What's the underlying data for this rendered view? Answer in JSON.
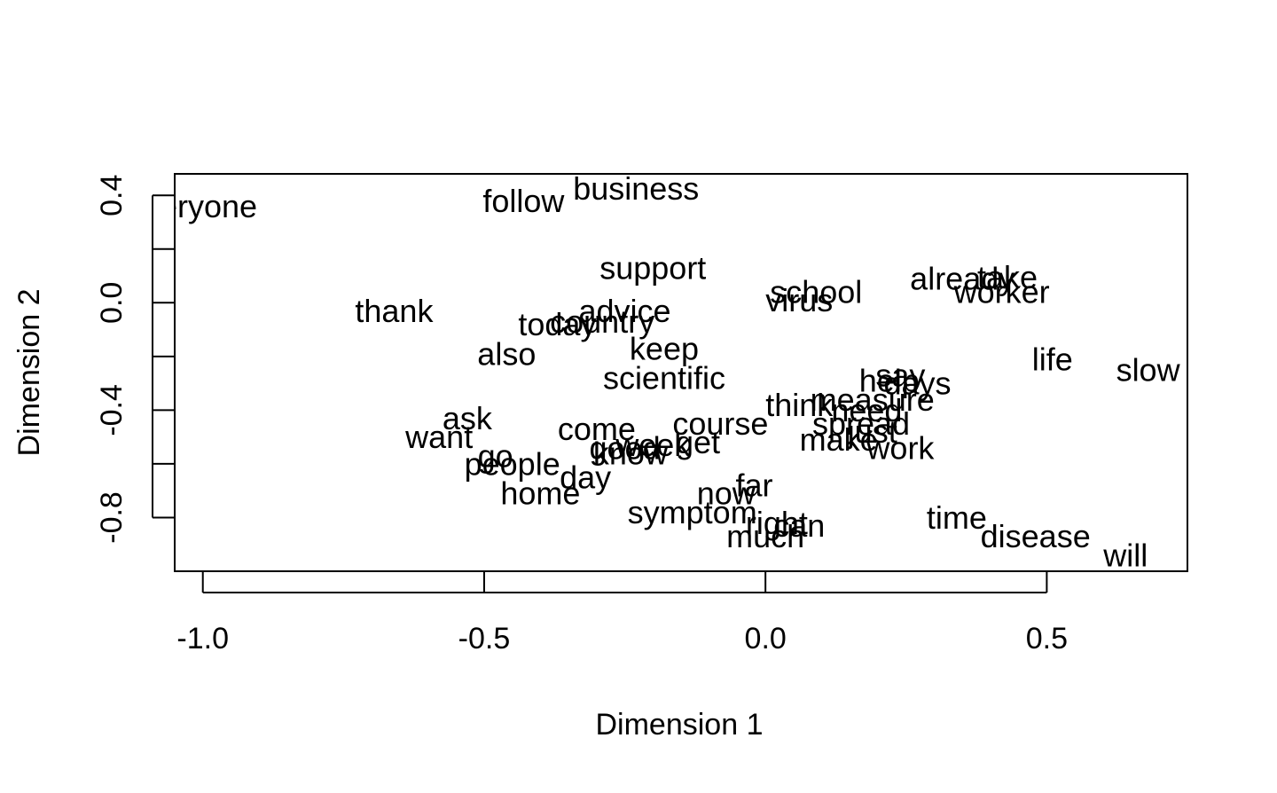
{
  "chart_data": {
    "type": "scatter",
    "xlabel": "Dimension 1",
    "ylabel": "Dimension 2",
    "xlim": [
      -1.05,
      0.75
    ],
    "ylim": [
      -1.0,
      0.48
    ],
    "xticks": [
      {
        "value": -1.0,
        "label": "-1.0"
      },
      {
        "value": -0.5,
        "label": "-0.5"
      },
      {
        "value": 0.0,
        "label": "0.0"
      },
      {
        "value": 0.5,
        "label": "0.5"
      }
    ],
    "yticks": [
      {
        "value": -0.8,
        "label": "-0.8",
        "labeled": true
      },
      {
        "value": -0.6,
        "label": "",
        "labeled": false
      },
      {
        "value": -0.4,
        "label": "-0.4",
        "labeled": true
      },
      {
        "value": -0.2,
        "label": "",
        "labeled": false
      },
      {
        "value": 0.0,
        "label": "0.0",
        "labeled": true
      },
      {
        "value": 0.2,
        "label": "",
        "labeled": false
      },
      {
        "value": 0.4,
        "label": "0.4",
        "labeled": true
      }
    ],
    "grid": false,
    "points": [
      {
        "label": "everyone",
        "x": -1.02,
        "y": 0.36
      },
      {
        "label": "follow",
        "x": -0.43,
        "y": 0.38
      },
      {
        "label": "business",
        "x": -0.23,
        "y": 0.425
      },
      {
        "label": "support",
        "x": -0.2,
        "y": 0.13
      },
      {
        "label": "school",
        "x": 0.09,
        "y": 0.04
      },
      {
        "label": "virus",
        "x": 0.06,
        "y": 0.01
      },
      {
        "label": "already",
        "x": 0.35,
        "y": 0.09
      },
      {
        "label": "take",
        "x": 0.43,
        "y": 0.095
      },
      {
        "label": "worker",
        "x": 0.42,
        "y": 0.04
      },
      {
        "label": "thank",
        "x": -0.66,
        "y": -0.03
      },
      {
        "label": "advice",
        "x": -0.25,
        "y": -0.03
      },
      {
        "label": "country",
        "x": -0.29,
        "y": -0.07
      },
      {
        "label": "today",
        "x": -0.37,
        "y": -0.08
      },
      {
        "label": "slow",
        "x": 0.68,
        "y": -0.25
      },
      {
        "label": "also",
        "x": -0.46,
        "y": -0.19
      },
      {
        "label": "keep",
        "x": -0.18,
        "y": -0.17
      },
      {
        "label": "life",
        "x": 0.51,
        "y": -0.21
      },
      {
        "label": "scientific",
        "x": -0.18,
        "y": -0.28
      },
      {
        "label": "help",
        "x": 0.22,
        "y": -0.29
      },
      {
        "label": "say",
        "x": 0.24,
        "y": -0.27
      },
      {
        "label": "days",
        "x": 0.27,
        "y": -0.3
      },
      {
        "label": "measure",
        "x": 0.19,
        "y": -0.36
      },
      {
        "label": "think",
        "x": 0.06,
        "y": -0.38
      },
      {
        "label": "need",
        "x": 0.18,
        "y": -0.4
      },
      {
        "label": "ask",
        "x": -0.53,
        "y": -0.43
      },
      {
        "label": "come",
        "x": -0.3,
        "y": -0.47
      },
      {
        "label": "course",
        "x": -0.08,
        "y": -0.45
      },
      {
        "label": "spread",
        "x": 0.17,
        "y": -0.45
      },
      {
        "label": "want",
        "x": -0.58,
        "y": -0.5
      },
      {
        "label": "week",
        "x": -0.2,
        "y": -0.53
      },
      {
        "label": "get",
        "x": -0.12,
        "y": -0.52
      },
      {
        "label": "make",
        "x": 0.13,
        "y": -0.51
      },
      {
        "label": "just",
        "x": 0.19,
        "y": -0.48
      },
      {
        "label": "work",
        "x": 0.24,
        "y": -0.54
      },
      {
        "label": "good",
        "x": -0.25,
        "y": -0.54
      },
      {
        "label": "know",
        "x": -0.24,
        "y": -0.56
      },
      {
        "label": "go",
        "x": -0.48,
        "y": -0.57
      },
      {
        "label": "people",
        "x": -0.45,
        "y": -0.6
      },
      {
        "label": "day",
        "x": -0.32,
        "y": -0.65
      },
      {
        "label": "home",
        "x": -0.4,
        "y": -0.71
      },
      {
        "label": "far",
        "x": -0.02,
        "y": -0.68
      },
      {
        "label": "now",
        "x": -0.07,
        "y": -0.71
      },
      {
        "label": "symptom",
        "x": -0.13,
        "y": -0.78
      },
      {
        "label": "right",
        "x": 0.02,
        "y": -0.82
      },
      {
        "label": "can",
        "x": 0.06,
        "y": -0.83
      },
      {
        "label": "much",
        "x": 0.0,
        "y": -0.87
      },
      {
        "label": "time",
        "x": 0.34,
        "y": -0.8
      },
      {
        "label": "disease",
        "x": 0.48,
        "y": -0.87
      },
      {
        "label": "will",
        "x": 0.64,
        "y": -0.94
      }
    ]
  }
}
